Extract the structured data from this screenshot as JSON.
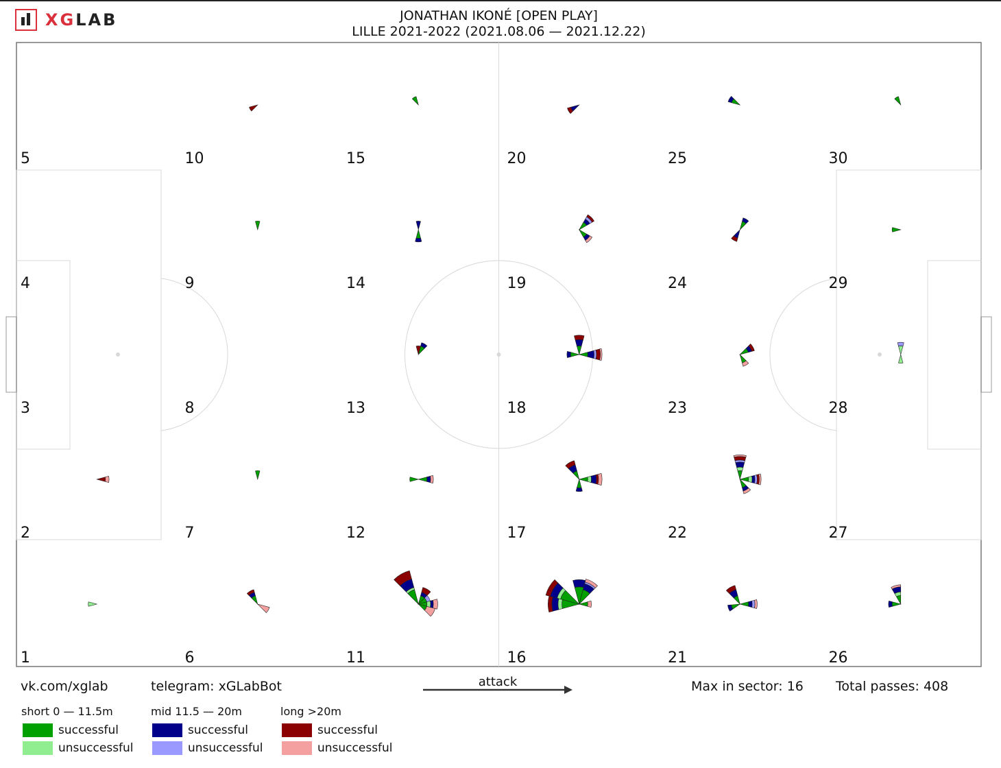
{
  "header": {
    "brand_prefix": "XG",
    "brand_suffix": "LAB",
    "title_line1": "JONATHAN IKONÉ [OPEN PLAY]",
    "title_line2": "LILLE 2021-2022 (2021.08.06 — 2021.12.22)"
  },
  "footer": {
    "vk": "vk.com/xglab",
    "telegram": "telegram: xGLabBot",
    "attack_label": "attack",
    "max_in_sector": "Max in sector: 16",
    "total_passes": "Total passes: 408"
  },
  "legend": {
    "groups": [
      {
        "title": "short 0 — 11.5m",
        "successful": "successful",
        "unsuccessful": "unsuccessful",
        "color_success": "#00a000",
        "color_fail": "#90ee90"
      },
      {
        "title": "mid 11.5 — 20m",
        "successful": "successful",
        "unsuccessful": "unsuccessful",
        "color_success": "#00008b",
        "color_fail": "#9999ff"
      },
      {
        "title": "long >20m",
        "successful": "successful",
        "unsuccessful": "unsuccessful",
        "color_success": "#8b0000",
        "color_fail": "#f4a0a0"
      }
    ]
  },
  "chart_data": {
    "type": "polar-rose-grid",
    "description_fields": [
      "sector",
      "roses: angle_deg (0 = attack direction), dist band, outcome, count"
    ],
    "max_in_sector": 16,
    "total_passes": 408,
    "sector_labels": [
      "1",
      "2",
      "3",
      "4",
      "5",
      "6",
      "7",
      "8",
      "9",
      "10",
      "11",
      "12",
      "13",
      "14",
      "15",
      "16",
      "17",
      "18",
      "19",
      "20",
      "21",
      "22",
      "23",
      "24",
      "25",
      "26",
      "27",
      "28",
      "29",
      "30"
    ],
    "sectors": [
      {
        "id": 1,
        "wedges": [
          {
            "a": 180,
            "short_s": 0,
            "short_f": 1,
            "mid_s": 0,
            "mid_f": 0,
            "long_s": 0,
            "long_f": 0
          }
        ]
      },
      {
        "id": 2,
        "wedges": [
          {
            "a": 0,
            "short_s": 0,
            "short_f": 0,
            "mid_s": 0,
            "mid_f": 0,
            "long_s": 1,
            "long_f": 1
          }
        ]
      },
      {
        "id": 6,
        "wedges": [
          {
            "a": 120,
            "short_s": 1,
            "short_f": 0,
            "mid_s": 1,
            "mid_f": 0,
            "long_s": 1,
            "long_f": 0
          },
          {
            "a": 330,
            "short_s": 0,
            "short_f": 0,
            "mid_s": 0,
            "mid_f": 0,
            "long_s": 0,
            "long_f": 2
          }
        ]
      },
      {
        "id": 7,
        "wedges": [
          {
            "a": 90,
            "short_s": 1,
            "short_f": 0,
            "mid_s": 0,
            "mid_f": 0,
            "long_s": 0,
            "long_f": 0
          }
        ]
      },
      {
        "id": 9,
        "wedges": [
          {
            "a": 90,
            "short_s": 1,
            "short_f": 0,
            "mid_s": 0,
            "mid_f": 0,
            "long_s": 0,
            "long_f": 0
          }
        ]
      },
      {
        "id": 10,
        "wedges": [
          {
            "a": 210,
            "short_s": 0,
            "short_f": 0,
            "mid_s": 0,
            "mid_f": 0,
            "long_s": 1,
            "long_f": 0
          }
        ]
      },
      {
        "id": 11,
        "wedges": [
          {
            "a": 120,
            "short_s": 3,
            "short_f": 1,
            "mid_s": 5,
            "mid_f": 0,
            "long_s": 7,
            "long_f": 0
          },
          {
            "a": 60,
            "short_s": 1,
            "short_f": 0,
            "mid_s": 1,
            "mid_f": 0,
            "long_s": 2,
            "long_f": 0
          },
          {
            "a": 30,
            "short_s": 1,
            "short_f": 0,
            "mid_s": 0,
            "mid_f": 1,
            "long_s": 0,
            "long_f": 0
          },
          {
            "a": 0,
            "short_s": 1,
            "short_f": 1,
            "mid_s": 1,
            "mid_f": 0,
            "long_s": 0,
            "long_f": 2
          },
          {
            "a": 330,
            "short_s": 1,
            "short_f": 0,
            "mid_s": 0,
            "mid_f": 0,
            "long_s": 0,
            "long_f": 3
          }
        ]
      },
      {
        "id": 12,
        "wedges": [
          {
            "a": 0,
            "short_s": 1,
            "short_f": 0,
            "mid_s": 1,
            "mid_f": 0,
            "long_s": 0,
            "long_f": 1
          },
          {
            "a": 180,
            "short_s": 1,
            "short_f": 0,
            "mid_s": 0,
            "mid_f": 0,
            "long_s": 0,
            "long_f": 0
          }
        ]
      },
      {
        "id": 13,
        "wedges": [
          {
            "a": 60,
            "short_s": 1,
            "short_f": 0,
            "mid_s": 1,
            "mid_f": 0,
            "long_s": 0,
            "long_f": 0
          },
          {
            "a": 90,
            "short_s": 0,
            "short_f": 0,
            "mid_s": 0,
            "mid_f": 0,
            "long_s": 1,
            "long_f": 0
          }
        ]
      },
      {
        "id": 14,
        "wedges": [
          {
            "a": 90,
            "short_s": 0,
            "short_f": 0,
            "mid_s": 1,
            "mid_f": 0,
            "long_s": 0,
            "long_f": 0
          },
          {
            "a": 270,
            "short_s": 1,
            "short_f": 0,
            "mid_s": 1,
            "mid_f": 0,
            "long_s": 0,
            "long_f": 0
          }
        ]
      },
      {
        "id": 15,
        "wedges": [
          {
            "a": 120,
            "short_s": 1,
            "short_f": 0,
            "mid_s": 0,
            "mid_f": 0,
            "long_s": 0,
            "long_f": 0
          }
        ]
      },
      {
        "id": 16,
        "wedges": [
          {
            "a": 150,
            "short_s": 5,
            "short_f": 2,
            "mid_s": 5,
            "mid_f": 0,
            "long_s": 4,
            "long_f": 0
          },
          {
            "a": 180,
            "short_s": 4,
            "short_f": 2,
            "mid_s": 4,
            "mid_f": 0,
            "long_s": 3,
            "long_f": 0
          },
          {
            "a": 90,
            "short_s": 4,
            "short_f": 0,
            "mid_s": 4,
            "mid_f": 0,
            "long_s": 0,
            "long_f": 0
          },
          {
            "a": 60,
            "short_s": 3,
            "short_f": 0,
            "mid_s": 3,
            "mid_f": 1,
            "long_s": 0,
            "long_f": 2
          },
          {
            "a": 0,
            "short_s": 1,
            "short_f": 0,
            "mid_s": 0,
            "mid_f": 0,
            "long_s": 0,
            "long_f": 1
          }
        ]
      },
      {
        "id": 17,
        "wedges": [
          {
            "a": 120,
            "short_s": 1,
            "short_f": 0,
            "mid_s": 2,
            "mid_f": 0,
            "long_s": 2,
            "long_f": 0
          },
          {
            "a": 0,
            "short_s": 1,
            "short_f": 1,
            "mid_s": 2,
            "mid_f": 0,
            "long_s": 1,
            "long_f": 2
          },
          {
            "a": 270,
            "short_s": 1,
            "short_f": 0,
            "mid_s": 1,
            "mid_f": 0,
            "long_s": 0,
            "long_f": 0
          }
        ]
      },
      {
        "id": 18,
        "wedges": [
          {
            "a": 0,
            "short_s": 1,
            "short_f": 0,
            "mid_s": 2,
            "mid_f": 1,
            "long_s": 2,
            "long_f": 1
          },
          {
            "a": 90,
            "short_s": 1,
            "short_f": 0,
            "mid_s": 2,
            "mid_f": 0,
            "long_s": 2,
            "long_f": 0
          },
          {
            "a": 180,
            "short_s": 1,
            "short_f": 0,
            "mid_s": 1,
            "mid_f": 0,
            "long_s": 0,
            "long_f": 0
          }
        ]
      },
      {
        "id": 19,
        "wedges": [
          {
            "a": 45,
            "short_s": 1,
            "short_f": 0,
            "mid_s": 1,
            "mid_f": 1,
            "long_s": 1,
            "long_f": 0
          },
          {
            "a": 315,
            "short_s": 1,
            "short_f": 0,
            "mid_s": 1,
            "mid_f": 0,
            "long_s": 0,
            "long_f": 1
          }
        ]
      },
      {
        "id": 20,
        "wedges": [
          {
            "a": 210,
            "short_s": 0,
            "short_f": 0,
            "mid_s": 1,
            "mid_f": 0,
            "long_s": 1,
            "long_f": 0
          }
        ]
      },
      {
        "id": 21,
        "wedges": [
          {
            "a": 120,
            "short_s": 1,
            "short_f": 0,
            "mid_s": 2,
            "mid_f": 0,
            "long_s": 2,
            "long_f": 0
          },
          {
            "a": 0,
            "short_s": 1,
            "short_f": 0,
            "mid_s": 1,
            "mid_f": 1,
            "long_s": 0,
            "long_f": 1
          },
          {
            "a": 200,
            "short_s": 1,
            "short_f": 0,
            "mid_s": 1,
            "mid_f": 0,
            "long_s": 0,
            "long_f": 0
          }
        ]
      },
      {
        "id": 22,
        "wedges": [
          {
            "a": 90,
            "short_s": 1,
            "short_f": 1,
            "mid_s": 2,
            "mid_f": 1,
            "long_s": 2,
            "long_f": 1
          },
          {
            "a": 0,
            "short_s": 1,
            "short_f": 1,
            "mid_s": 1,
            "mid_f": 1,
            "long_s": 1,
            "long_f": 1
          },
          {
            "a": 300,
            "short_s": 1,
            "short_f": 0,
            "mid_s": 1,
            "mid_f": 0,
            "long_s": 0,
            "long_f": 1
          }
        ]
      },
      {
        "id": 23,
        "wedges": [
          {
            "a": 30,
            "short_s": 1,
            "short_f": 0,
            "mid_s": 1,
            "mid_f": 0,
            "long_s": 1,
            "long_f": 0
          },
          {
            "a": 300,
            "short_s": 1,
            "short_f": 0,
            "mid_s": 0,
            "mid_f": 0,
            "long_s": 0,
            "long_f": 1
          }
        ]
      },
      {
        "id": 24,
        "wedges": [
          {
            "a": 60,
            "short_s": 1,
            "short_f": 0,
            "mid_s": 1,
            "mid_f": 0,
            "long_s": 0,
            "long_f": 0
          },
          {
            "a": 240,
            "short_s": 0,
            "short_f": 0,
            "mid_s": 1,
            "mid_f": 0,
            "long_s": 1,
            "long_f": 0
          }
        ]
      },
      {
        "id": 25,
        "wedges": [
          {
            "a": 150,
            "short_s": 1,
            "short_f": 0,
            "mid_s": 1,
            "mid_f": 0,
            "long_s": 0,
            "long_f": 0
          }
        ]
      },
      {
        "id": 26,
        "wedges": [
          {
            "a": 105,
            "short_s": 1,
            "short_f": 1,
            "mid_s": 2,
            "mid_f": 0,
            "long_s": 0,
            "long_f": 1
          },
          {
            "a": 180,
            "short_s": 1,
            "short_f": 0,
            "mid_s": 1,
            "mid_f": 0,
            "long_s": 0,
            "long_f": 0
          }
        ]
      },
      {
        "id": 27,
        "wedges": [
          {
            "a": 90,
            "short_s": 0,
            "short_f": 0,
            "mid_s": 0,
            "mid_f": 0,
            "long_s": 0,
            "long_f": 0
          }
        ]
      },
      {
        "id": 28,
        "wedges": [
          {
            "a": 90,
            "short_s": 0,
            "short_f": 1,
            "mid_s": 0,
            "mid_f": 1,
            "long_s": 0,
            "long_f": 0
          },
          {
            "a": 270,
            "short_s": 0,
            "short_f": 1,
            "mid_s": 0,
            "mid_f": 0,
            "long_s": 0,
            "long_f": 0
          }
        ]
      },
      {
        "id": 29,
        "wedges": [
          {
            "a": 180,
            "short_s": 1,
            "short_f": 0,
            "mid_s": 0,
            "mid_f": 0,
            "long_s": 0,
            "long_f": 0
          }
        ]
      },
      {
        "id": 30,
        "wedges": [
          {
            "a": 120,
            "short_s": 1,
            "short_f": 0,
            "mid_s": 0,
            "mid_f": 0,
            "long_s": 0,
            "long_f": 0
          }
        ]
      }
    ]
  }
}
